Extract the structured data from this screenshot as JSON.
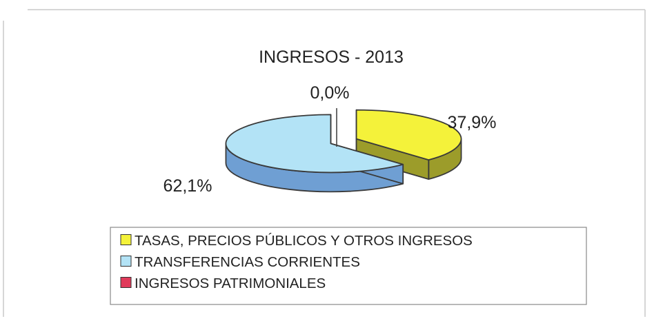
{
  "chart_data": {
    "type": "pie",
    "title": "INGRESOS - 2013",
    "unit": "%",
    "grid": false,
    "legend_placement": "bottom",
    "three_d": true,
    "exploded": true,
    "slices": [
      {
        "label": "TASAS, PRECIOS PÚBLICOS Y OTROS INGRESOS",
        "value": 37.9,
        "display": "37,9%",
        "color": "#f4f23a",
        "side_color": "#9c9c2a"
      },
      {
        "label": "TRANSFERENCIAS CORRIENTES",
        "value": 62.1,
        "display": "62,1%",
        "color": "#b3e3f6",
        "side_color": "#6f9fd3"
      },
      {
        "label": "INGRESOS PATRIMONIALES",
        "value": 0.0,
        "display": "0,0%",
        "color": "#e03a5a",
        "side_color": "#a02040"
      }
    ]
  }
}
